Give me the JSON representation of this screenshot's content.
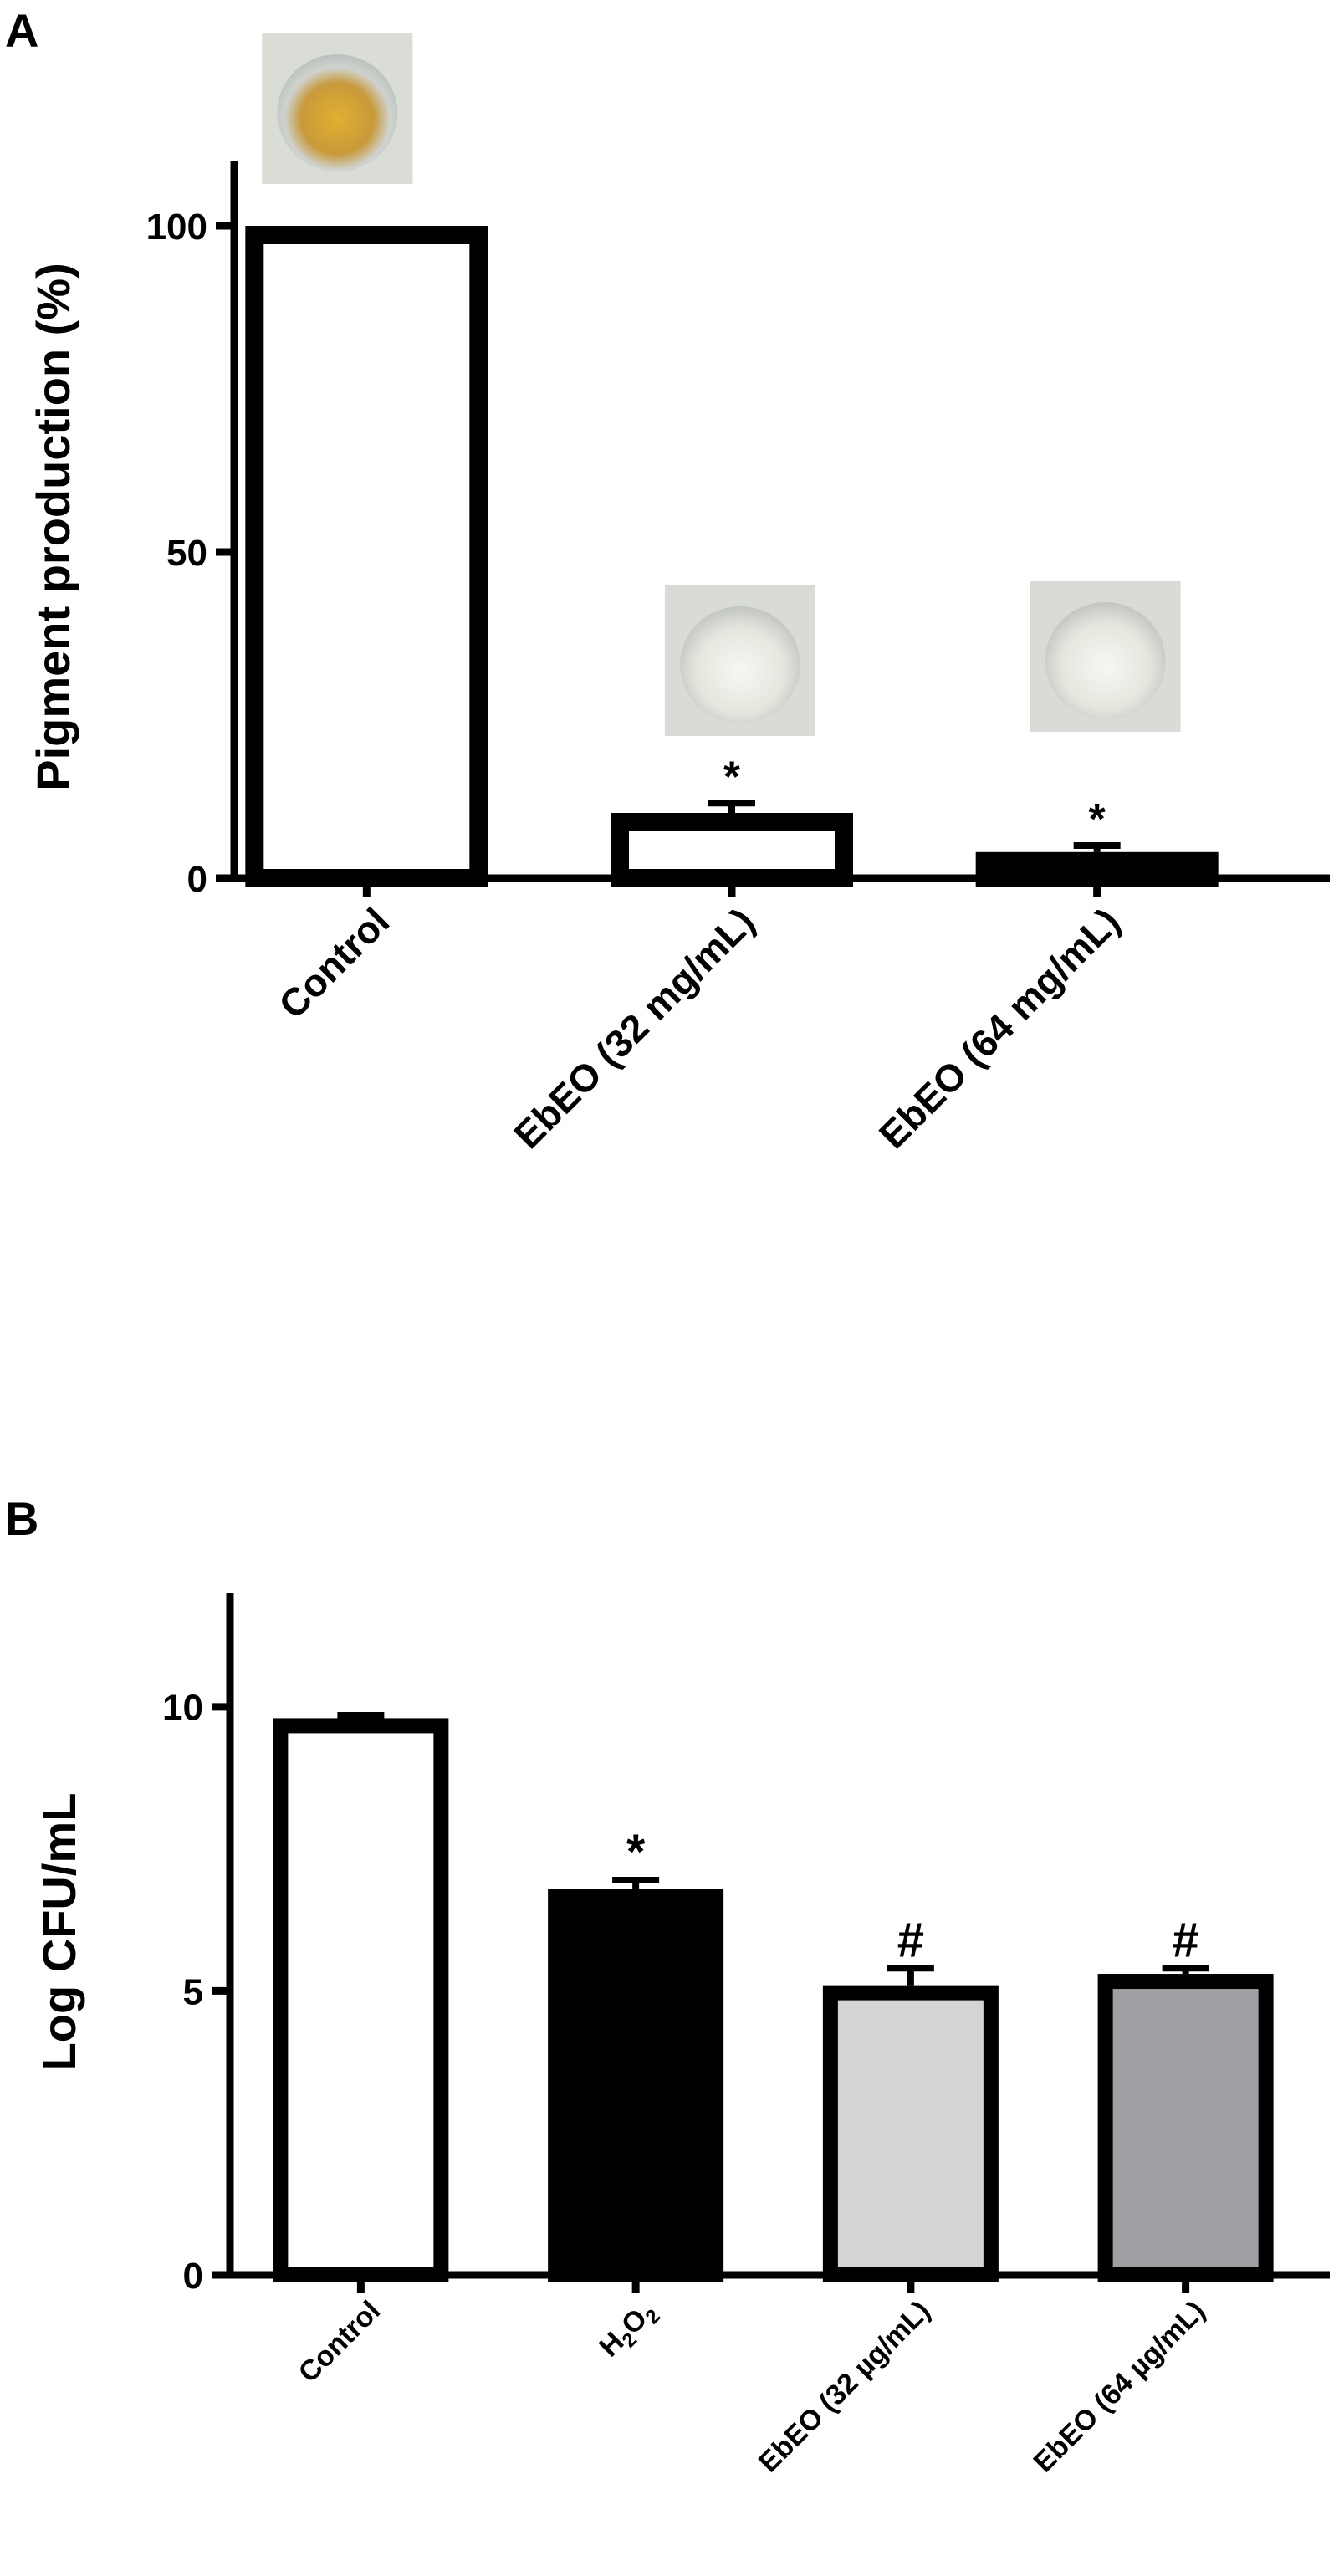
{
  "chart_data": [
    {
      "panel_label": "A",
      "type": "bar",
      "ylabel": "Pigment production (%)",
      "ylim": [
        0,
        110
      ],
      "yticks": [
        0,
        50,
        100
      ],
      "categories": [
        "Control",
        "EbEO (32 mg/mL)",
        "EbEO (64 mg/mL)"
      ],
      "values": [
        100,
        10,
        4
      ],
      "errors": [
        0,
        1.5,
        1
      ],
      "annotations": [
        "",
        "*",
        "*"
      ],
      "bar_colors": [
        "#ffffff",
        "#ffffff",
        "#f4f7d6"
      ],
      "well_images": [
        "yellow-pigmented-well",
        "white-well",
        "white-well"
      ]
    },
    {
      "panel_label": "B",
      "type": "bar",
      "ylabel": "Log CFU/mL",
      "ylim": [
        0,
        12
      ],
      "yticks": [
        0,
        5,
        10
      ],
      "categories": [
        "Control",
        "H2O2",
        "EbEO (32 µg/mL)",
        "EbEO (64 µg/mL)"
      ],
      "values": [
        9.8,
        6.8,
        5.1,
        5.3
      ],
      "errors": [
        0.05,
        0.15,
        0.3,
        0.1
      ],
      "annotations": [
        "",
        "*",
        "#",
        "#"
      ],
      "bar_colors": [
        "#ffffff",
        "#000000",
        "#d4d4d4",
        "#a0a0a4"
      ]
    }
  ]
}
